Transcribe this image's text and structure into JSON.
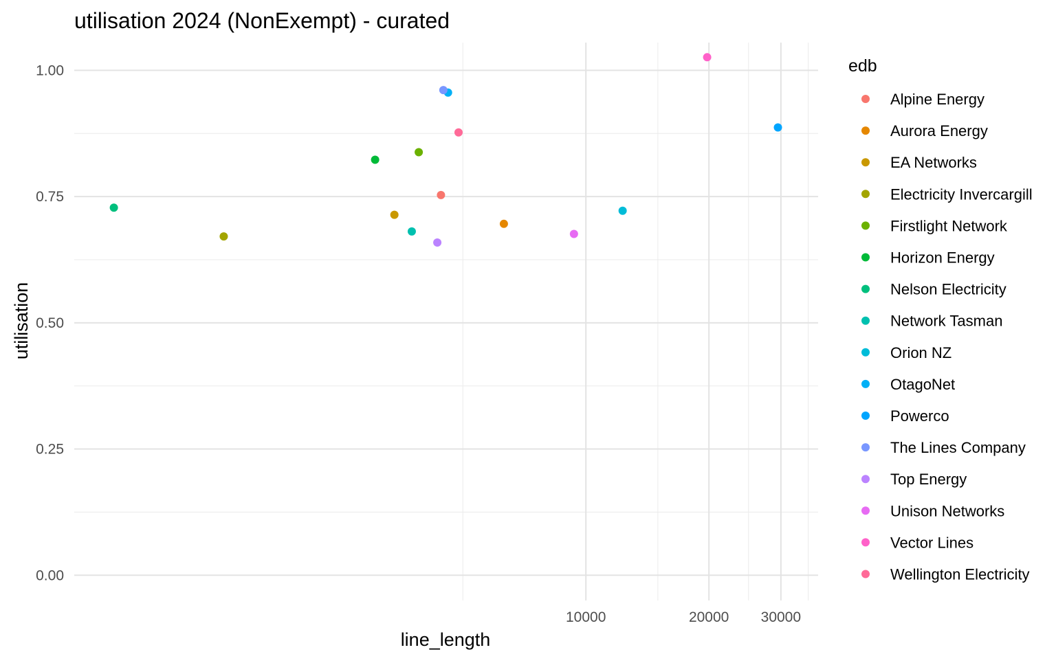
{
  "chart_data": {
    "type": "scatter",
    "title": "utilisation 2024 (NonExempt) - curated",
    "xlabel": "line_length",
    "ylabel": "utilisation",
    "x_scale": "log10",
    "xlim": [
      560,
      37000
    ],
    "ylim": [
      -0.05,
      1.055
    ],
    "x_ticks": [
      {
        "value": 10000,
        "label": "10000"
      },
      {
        "value": 20000,
        "label": "20000"
      },
      {
        "value": 30000,
        "label": "30000"
      }
    ],
    "x_minor_gridlines": [
      5000,
      15000,
      25000,
      35000
    ],
    "y_ticks": [
      {
        "value": 0.0,
        "label": "0.00"
      },
      {
        "value": 0.25,
        "label": "0.25"
      },
      {
        "value": 0.5,
        "label": "0.50"
      },
      {
        "value": 0.75,
        "label": "0.75"
      },
      {
        "value": 1.0,
        "label": "1.00"
      }
    ],
    "y_minor_gridlines": [
      0.125,
      0.375,
      0.625,
      0.875
    ],
    "grid": true,
    "legend": {
      "title": "edb",
      "placement": "right"
    },
    "series": [
      {
        "name": "Alpine Energy",
        "color": "#F8766D",
        "x": 4420,
        "y": 0.753
      },
      {
        "name": "Aurora Energy",
        "color": "#E58700",
        "x": 6300,
        "y": 0.696
      },
      {
        "name": "EA Networks",
        "color": "#C99800",
        "x": 3400,
        "y": 0.714
      },
      {
        "name": "Electricity Invercargill",
        "color": "#A3A500",
        "x": 1300,
        "y": 0.671
      },
      {
        "name": "Firstlight Network",
        "color": "#6BB100",
        "x": 3900,
        "y": 0.838
      },
      {
        "name": "Horizon Energy",
        "color": "#00BA38",
        "x": 3050,
        "y": 0.823
      },
      {
        "name": "Nelson Electricity",
        "color": "#00BF7D",
        "x": 700,
        "y": 0.728
      },
      {
        "name": "Network Tasman",
        "color": "#00C0AF",
        "x": 3750,
        "y": 0.681
      },
      {
        "name": "Orion NZ",
        "color": "#00BCD8",
        "x": 12300,
        "y": 0.722
      },
      {
        "name": "OtagoNet",
        "color": "#00B0F6",
        "x": 4600,
        "y": 0.956
      },
      {
        "name": "Powerco",
        "color": "#00A5FF",
        "x": 29500,
        "y": 0.887
      },
      {
        "name": "The Lines Company",
        "color": "#7997FF",
        "x": 4480,
        "y": 0.961
      },
      {
        "name": "Top Energy",
        "color": "#BB83FF",
        "x": 4330,
        "y": 0.659
      },
      {
        "name": "Unison Networks",
        "color": "#E76BF3",
        "x": 9350,
        "y": 0.676
      },
      {
        "name": "Vector Lines",
        "color": "#FF61C9",
        "x": 19800,
        "y": 1.026
      },
      {
        "name": "Wellington Electricity",
        "color": "#FF6A98",
        "x": 4880,
        "y": 0.877
      }
    ]
  }
}
